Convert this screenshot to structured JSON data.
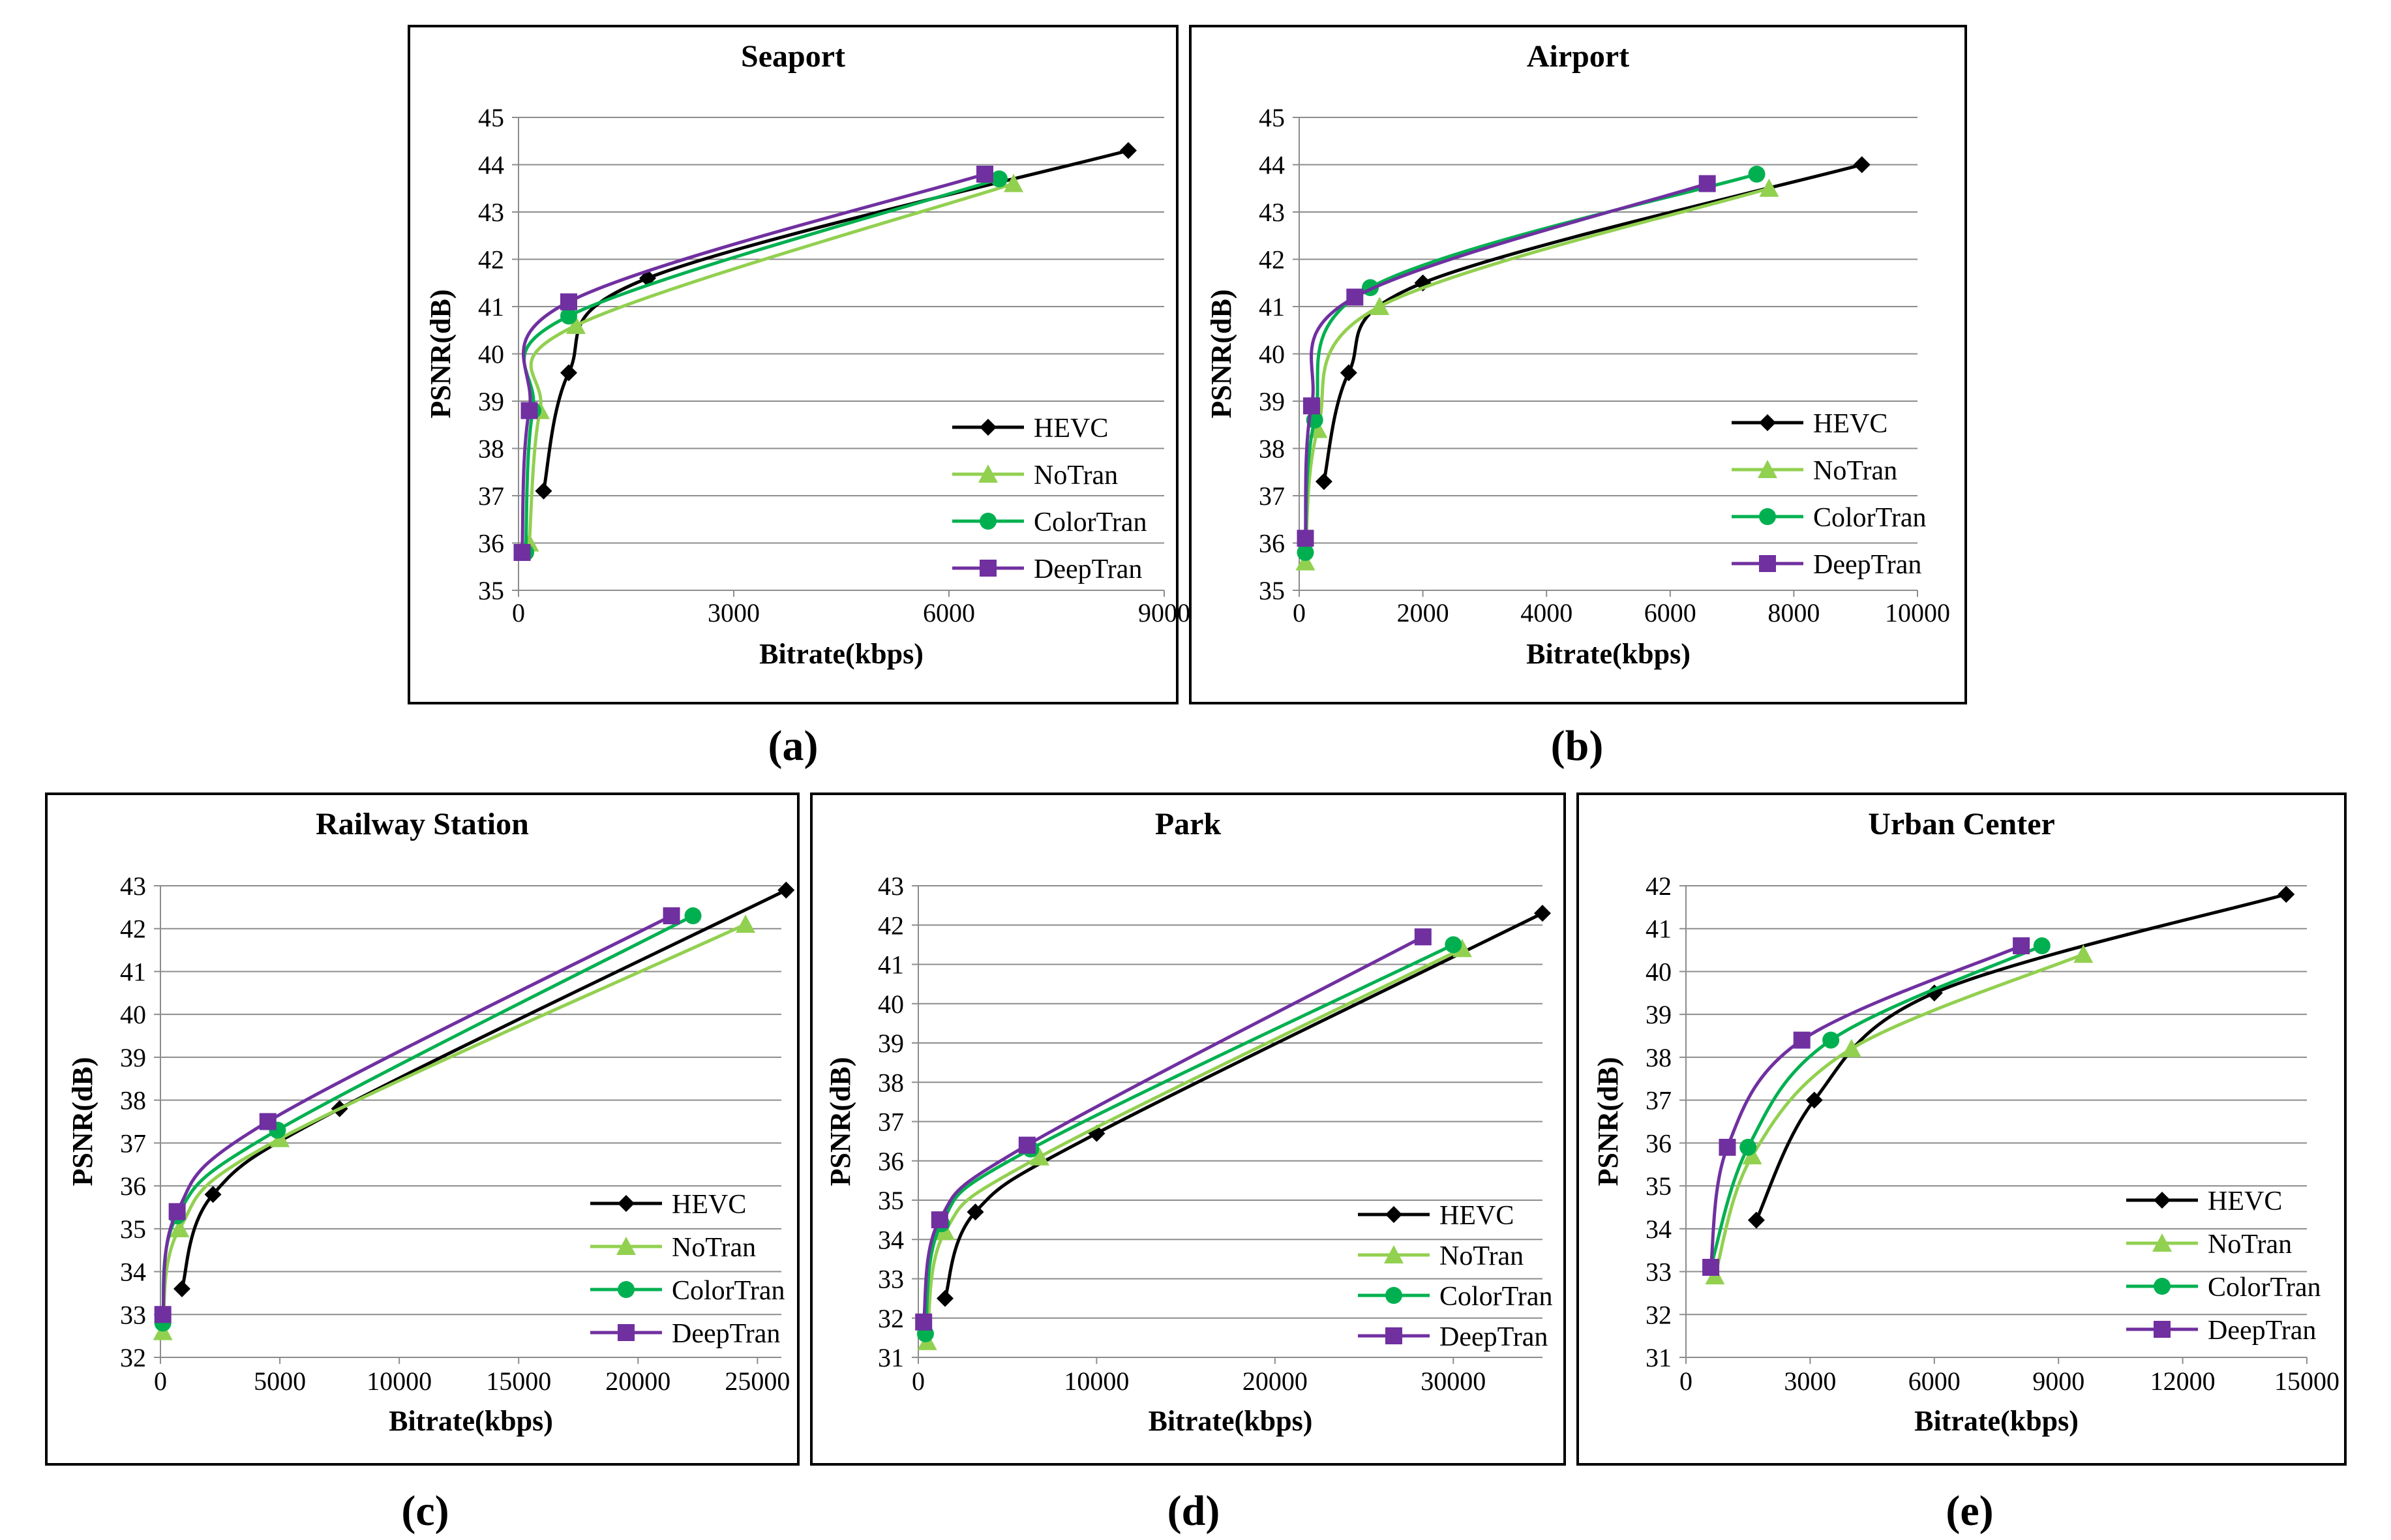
{
  "figure": {
    "panel_labels": [
      "(a)",
      "(b)",
      "(c)",
      "(d)",
      "(e)"
    ],
    "series_colors": {
      "HEVC": "#000000",
      "NoTran": "#92D050",
      "ColorTran": "#00B050",
      "DeepTran": "#7030A0"
    },
    "series_markers": {
      "HEVC": "diamond",
      "NoTran": "triangle",
      "ColorTran": "circle",
      "DeepTran": "square"
    }
  },
  "chart_data": [
    {
      "type": "line",
      "title": "Seaport",
      "xlabel": "Bitrate(kbps)",
      "ylabel": "PSNR(dB)",
      "xlim": [
        0,
        9000
      ],
      "ylim": [
        35,
        45
      ],
      "xticks": [
        0,
        3000,
        6000,
        9000
      ],
      "yticks": [
        35,
        36,
        37,
        38,
        39,
        40,
        41,
        42,
        43,
        44,
        45
      ],
      "grid": "horizontal",
      "legend": "bottom-right",
      "series": [
        {
          "name": "HEVC",
          "x": [
            350,
            700,
            1800,
            8500
          ],
          "y": [
            37.1,
            39.6,
            41.6,
            44.3
          ]
        },
        {
          "name": "NoTran",
          "x": [
            150,
            300,
            800,
            6900
          ],
          "y": [
            36.0,
            38.8,
            40.6,
            43.6
          ]
        },
        {
          "name": "ColorTran",
          "x": [
            100,
            200,
            700,
            6700
          ],
          "y": [
            35.8,
            38.8,
            40.8,
            43.7
          ]
        },
        {
          "name": "DeepTran",
          "x": [
            50,
            150,
            700,
            6500
          ],
          "y": [
            35.8,
            38.8,
            41.1,
            43.8
          ]
        }
      ]
    },
    {
      "type": "line",
      "title": "Airport",
      "xlabel": "Bitrate(kbps)",
      "ylabel": "PSNR(dB)",
      "xlim": [
        0,
        10000
      ],
      "ylim": [
        35,
        45
      ],
      "xticks": [
        0,
        2000,
        4000,
        6000,
        8000,
        10000
      ],
      "yticks": [
        35,
        36,
        37,
        38,
        39,
        40,
        41,
        42,
        43,
        44,
        45
      ],
      "grid": "horizontal",
      "legend": "bottom-right",
      "series": [
        {
          "name": "HEVC",
          "x": [
            400,
            800,
            2000,
            9100
          ],
          "y": [
            37.3,
            39.6,
            41.5,
            44.0
          ]
        },
        {
          "name": "NoTran",
          "x": [
            100,
            300,
            1300,
            7600
          ],
          "y": [
            35.6,
            38.4,
            41.0,
            43.5
          ]
        },
        {
          "name": "ColorTran",
          "x": [
            100,
            250,
            1150,
            7400
          ],
          "y": [
            35.8,
            38.6,
            41.4,
            43.8
          ]
        },
        {
          "name": "DeepTran",
          "x": [
            100,
            200,
            900,
            6600
          ],
          "y": [
            36.1,
            38.9,
            41.2,
            43.6
          ]
        }
      ]
    },
    {
      "type": "line",
      "title": "Railway Station",
      "xlabel": "Bitrate(kbps)",
      "ylabel": "PSNR(dB)",
      "xlim": [
        0,
        26000
      ],
      "ylim": [
        32,
        43
      ],
      "xticks": [
        0,
        5000,
        10000,
        15000,
        20000,
        25000
      ],
      "yticks": [
        32,
        33,
        34,
        35,
        36,
        37,
        38,
        39,
        40,
        41,
        42,
        43
      ],
      "grid": "horizontal",
      "legend": "bottom-right",
      "series": [
        {
          "name": "HEVC",
          "x": [
            900,
            2200,
            7500,
            26200
          ],
          "y": [
            33.6,
            35.8,
            37.8,
            42.9
          ]
        },
        {
          "name": "NoTran",
          "x": [
            100,
            800,
            5000,
            24500
          ],
          "y": [
            32.6,
            35.0,
            37.1,
            42.1
          ]
        },
        {
          "name": "ColorTran",
          "x": [
            100,
            700,
            4900,
            22300
          ],
          "y": [
            32.8,
            35.3,
            37.3,
            42.3
          ]
        },
        {
          "name": "DeepTran",
          "x": [
            100,
            700,
            4500,
            21400
          ],
          "y": [
            33.0,
            35.4,
            37.5,
            42.3
          ]
        }
      ]
    },
    {
      "type": "line",
      "title": "Park",
      "xlabel": "Bitrate(kbps)",
      "ylabel": "PSNR(dB)",
      "xlim": [
        0,
        35000
      ],
      "ylim": [
        31,
        43
      ],
      "xticks": [
        0,
        10000,
        20000,
        30000
      ],
      "yticks": [
        31,
        32,
        33,
        34,
        35,
        36,
        37,
        38,
        39,
        40,
        41,
        42,
        43
      ],
      "grid": "horizontal",
      "legend": "bottom-right",
      "series": [
        {
          "name": "HEVC",
          "x": [
            1500,
            3200,
            10000,
            35000
          ],
          "y": [
            32.5,
            34.7,
            36.7,
            42.3
          ]
        },
        {
          "name": "NoTran",
          "x": [
            500,
            1500,
            6800,
            30500
          ],
          "y": [
            31.4,
            34.2,
            36.1,
            41.4
          ]
        },
        {
          "name": "ColorTran",
          "x": [
            400,
            1300,
            6300,
            30000
          ],
          "y": [
            31.6,
            34.4,
            36.3,
            41.5
          ]
        },
        {
          "name": "DeepTran",
          "x": [
            300,
            1200,
            6100,
            28300
          ],
          "y": [
            31.9,
            34.5,
            36.4,
            41.7
          ]
        }
      ]
    },
    {
      "type": "line",
      "title": "Urban Center",
      "xlabel": "Bitrate(kbps)",
      "ylabel": "PSNR(dB)",
      "xlim": [
        0,
        15000
      ],
      "ylim": [
        31,
        42
      ],
      "xticks": [
        0,
        3000,
        6000,
        9000,
        12000,
        15000
      ],
      "yticks": [
        31,
        32,
        33,
        34,
        35,
        36,
        37,
        38,
        39,
        40,
        41,
        42
      ],
      "grid": "horizontal",
      "legend": "bottom-right",
      "series": [
        {
          "name": "HEVC",
          "x": [
            1700,
            3100,
            6000,
            14500
          ],
          "y": [
            34.2,
            37.0,
            39.5,
            41.8
          ]
        },
        {
          "name": "NoTran",
          "x": [
            700,
            1600,
            4000,
            9600
          ],
          "y": [
            32.9,
            35.7,
            38.2,
            40.4
          ]
        },
        {
          "name": "ColorTran",
          "x": [
            600,
            1500,
            3500,
            8600
          ],
          "y": [
            33.1,
            35.9,
            38.4,
            40.6
          ]
        },
        {
          "name": "DeepTran",
          "x": [
            600,
            1000,
            2800,
            8100
          ],
          "y": [
            33.1,
            35.9,
            38.4,
            40.6
          ]
        }
      ]
    }
  ]
}
